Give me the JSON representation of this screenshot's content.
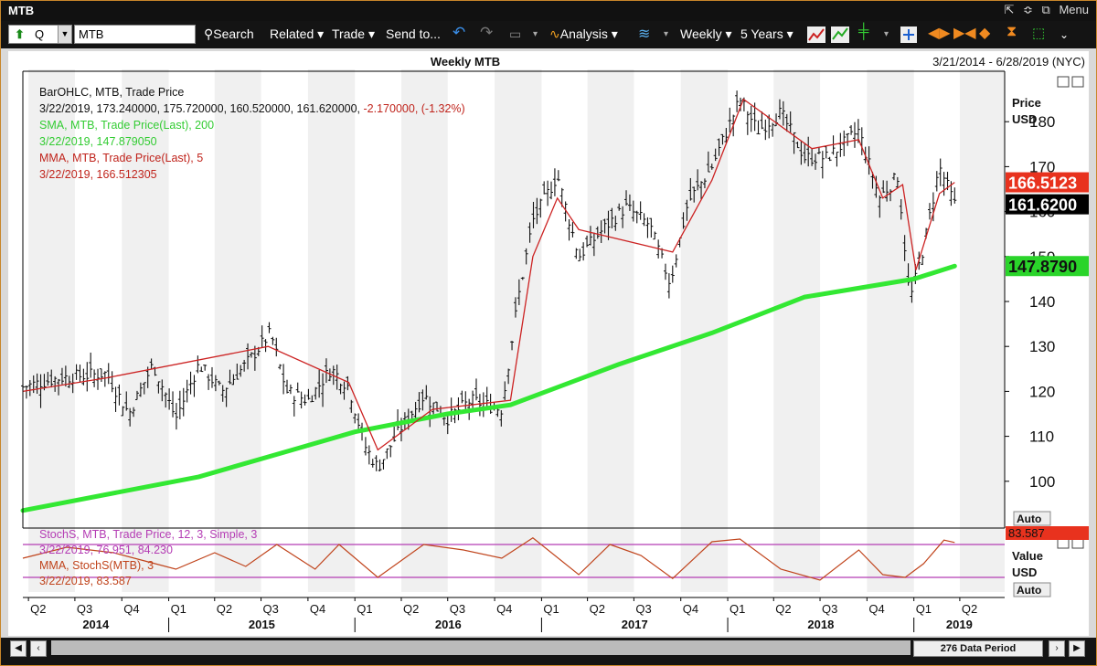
{
  "window": {
    "title": "MTB",
    "menu_label": "Menu",
    "pin_glyph": "⇱",
    "chevron_glyph": "≎",
    "window_glyph": "⧉"
  },
  "toolbar": {
    "symbol_q": "Q",
    "ticker": "MTB",
    "search": "Search",
    "related": "Related ▾",
    "trade": "Trade ▾",
    "send_to": "Send to...",
    "analysis": "Analysis ▾",
    "period": "Weekly ▾",
    "range": "5 Years ▾"
  },
  "header": {
    "title": "Weekly MTB",
    "range": "3/21/2014 - 6/28/2019 (NYC)"
  },
  "legend": {
    "bar_name": "BarOHLC, MTB, Trade Price",
    "bar_values": "3/22/2019, 173.240000, 175.720000, 160.520000, 161.620000,",
    "bar_change": "-2.170000, (-1.32%)",
    "sma_name": "SMA, MTB, Trade Price(Last),  200",
    "sma_value": "3/22/2019, 147.879050",
    "mma_name": "MMA, MTB, Trade Price(Last),  5",
    "mma_value": "3/22/2019, 166.512305",
    "stoch_name": "StochS, MTB, Trade Price,  12, 3, Simple, 3",
    "stoch_value": "3/22/2019, 76.951, 84.230",
    "stoch_mma_name": "MMA, StochS(MTB),  3",
    "stoch_mma_value": "3/22/2019, 83.587"
  },
  "axis": {
    "price_label": "Price",
    "price_unit": "USD",
    "value_label": "Value",
    "value_unit": "USD",
    "auto_label": "Auto",
    "auto_label_2": "Auto",
    "quarter_labels": [
      "Q2",
      "Q3",
      "Q4",
      "Q1",
      "Q2",
      "Q3",
      "Q4",
      "Q1",
      "Q2",
      "Q3",
      "Q4",
      "Q1",
      "Q2",
      "Q3",
      "Q4",
      "Q1",
      "Q2",
      "Q3",
      "Q4",
      "Q1",
      "Q2"
    ],
    "year_labels": [
      "2014",
      "2015",
      "2016",
      "2017",
      "2018",
      "2019"
    ]
  },
  "badges": {
    "mma": "166.5123",
    "last": "161.6200",
    "sma": "147.8790",
    "stoch": "83.587"
  },
  "status": {
    "data_period": "276 Data Period"
  },
  "colors": {
    "sma": "#33e833",
    "mma": "#cc2222",
    "bars": "#111111",
    "stoch_line": "#c0441c",
    "stoch_band": "#b43cb4",
    "badge_red": "#e8321e",
    "badge_green": "#2ad42a"
  },
  "chart_data": [
    {
      "type": "bar",
      "subtype": "ohlc",
      "title": "Weekly MTB",
      "ylabel": "Price USD",
      "ylim": [
        90,
        190
      ],
      "yticks": [
        100,
        110,
        120,
        130,
        140,
        150,
        160,
        170,
        180
      ],
      "x_range": [
        "2014-03-21",
        "2019-06-28"
      ],
      "series": [
        {
          "name": "BarOHLC, MTB, Trade Price",
          "points": [
            {
              "date": "2014-03-21",
              "close": 121
            },
            {
              "date": "2014-06-01",
              "close": 123
            },
            {
              "date": "2014-09-01",
              "close": 124
            },
            {
              "date": "2014-10-15",
              "close": 115
            },
            {
              "date": "2014-12-01",
              "close": 126
            },
            {
              "date": "2015-01-15",
              "close": 114
            },
            {
              "date": "2015-03-01",
              "close": 126
            },
            {
              "date": "2015-04-15",
              "close": 120
            },
            {
              "date": "2015-06-01",
              "close": 126
            },
            {
              "date": "2015-07-20",
              "close": 133
            },
            {
              "date": "2015-08-20",
              "close": 120
            },
            {
              "date": "2015-10-01",
              "close": 118
            },
            {
              "date": "2015-11-15",
              "close": 125
            },
            {
              "date": "2015-12-20",
              "close": 121
            },
            {
              "date": "2016-01-20",
              "close": 108
            },
            {
              "date": "2016-02-15",
              "close": 103
            },
            {
              "date": "2016-04-01",
              "close": 112
            },
            {
              "date": "2016-05-15",
              "close": 119
            },
            {
              "date": "2016-07-01",
              "close": 114
            },
            {
              "date": "2016-08-15",
              "close": 118
            },
            {
              "date": "2016-10-15",
              "close": 116
            },
            {
              "date": "2016-11-15",
              "close": 140
            },
            {
              "date": "2016-12-15",
              "close": 158
            },
            {
              "date": "2017-02-01",
              "close": 168
            },
            {
              "date": "2017-03-15",
              "close": 150
            },
            {
              "date": "2017-05-01",
              "close": 156
            },
            {
              "date": "2017-06-15",
              "close": 161
            },
            {
              "date": "2017-08-01",
              "close": 157
            },
            {
              "date": "2017-09-10",
              "close": 144
            },
            {
              "date": "2017-10-15",
              "close": 162
            },
            {
              "date": "2017-12-01",
              "close": 170
            },
            {
              "date": "2018-01-25",
              "close": 185
            },
            {
              "date": "2018-03-01",
              "close": 178
            },
            {
              "date": "2018-04-15",
              "close": 182
            },
            {
              "date": "2018-06-01",
              "close": 172
            },
            {
              "date": "2018-07-15",
              "close": 172
            },
            {
              "date": "2018-09-15",
              "close": 178
            },
            {
              "date": "2018-10-25",
              "close": 163
            },
            {
              "date": "2018-12-01",
              "close": 168
            },
            {
              "date": "2018-12-24",
              "close": 140
            },
            {
              "date": "2019-01-20",
              "close": 152
            },
            {
              "date": "2019-02-20",
              "close": 170
            },
            {
              "date": "2019-03-22",
              "close": 161.62
            }
          ]
        },
        {
          "name": "SMA, MTB, Trade Price(Last),  200",
          "points": [
            {
              "date": "2014-03-21",
              "value": 93.5
            },
            {
              "date": "2015-03-01",
              "value": 101
            },
            {
              "date": "2015-09-01",
              "value": 107
            },
            {
              "date": "2016-01-01",
              "value": 111
            },
            {
              "date": "2016-07-01",
              "value": 115
            },
            {
              "date": "2016-11-01",
              "value": 117
            },
            {
              "date": "2017-06-01",
              "value": 126
            },
            {
              "date": "2017-12-01",
              "value": 133
            },
            {
              "date": "2018-06-01",
              "value": 141
            },
            {
              "date": "2019-01-01",
              "value": 145
            },
            {
              "date": "2019-03-22",
              "value": 147.879
            }
          ]
        },
        {
          "name": "MMA, MTB, Trade Price(Last),  5",
          "points": [
            {
              "date": "2014-03-21",
              "value": 120
            },
            {
              "date": "2014-09-01",
              "value": 123
            },
            {
              "date": "2015-07-15",
              "value": 130
            },
            {
              "date": "2015-12-20",
              "value": 122
            },
            {
              "date": "2016-02-15",
              "value": 107
            },
            {
              "date": "2016-06-01",
              "value": 116
            },
            {
              "date": "2016-11-01",
              "value": 118
            },
            {
              "date": "2016-12-15",
              "value": 150
            },
            {
              "date": "2017-02-01",
              "value": 163
            },
            {
              "date": "2017-03-15",
              "value": 156
            },
            {
              "date": "2017-09-15",
              "value": 151
            },
            {
              "date": "2017-12-01",
              "value": 167
            },
            {
              "date": "2018-02-01",
              "value": 185
            },
            {
              "date": "2018-06-15",
              "value": 174
            },
            {
              "date": "2018-09-15",
              "value": 176
            },
            {
              "date": "2018-11-01",
              "value": 163
            },
            {
              "date": "2018-12-10",
              "value": 166
            },
            {
              "date": "2019-01-05",
              "value": 147
            },
            {
              "date": "2019-02-20",
              "value": 164
            },
            {
              "date": "2019-03-22",
              "value": 166.512
            }
          ]
        }
      ]
    },
    {
      "type": "line",
      "title": "StochS, MTB, Trade Price,  12, 3, Simple, 3",
      "ylabel": "Value USD",
      "ylim": [
        0,
        100
      ],
      "bands": [
        80,
        20
      ],
      "series": [
        {
          "name": "MMA, StochS(MTB),  3",
          "points": [
            {
              "date": "2014-03-21",
              "value": 55
            },
            {
              "date": "2014-06-15",
              "value": 75
            },
            {
              "date": "2014-09-15",
              "value": 65
            },
            {
              "date": "2014-11-15",
              "value": 50
            },
            {
              "date": "2015-01-15",
              "value": 35
            },
            {
              "date": "2015-04-01",
              "value": 65
            },
            {
              "date": "2015-06-01",
              "value": 40
            },
            {
              "date": "2015-08-01",
              "value": 80
            },
            {
              "date": "2015-10-15",
              "value": 35
            },
            {
              "date": "2015-12-01",
              "value": 80
            },
            {
              "date": "2016-02-15",
              "value": 20
            },
            {
              "date": "2016-05-15",
              "value": 80
            },
            {
              "date": "2016-08-01",
              "value": 70
            },
            {
              "date": "2016-10-15",
              "value": 55
            },
            {
              "date": "2016-12-15",
              "value": 92
            },
            {
              "date": "2017-03-15",
              "value": 25
            },
            {
              "date": "2017-05-15",
              "value": 80
            },
            {
              "date": "2017-07-15",
              "value": 60
            },
            {
              "date": "2017-09-15",
              "value": 18
            },
            {
              "date": "2017-12-01",
              "value": 85
            },
            {
              "date": "2018-01-25",
              "value": 90
            },
            {
              "date": "2018-04-15",
              "value": 35
            },
            {
              "date": "2018-07-01",
              "value": 15
            },
            {
              "date": "2018-09-15",
              "value": 70
            },
            {
              "date": "2018-11-01",
              "value": 25
            },
            {
              "date": "2018-12-15",
              "value": 20
            },
            {
              "date": "2019-01-20",
              "value": 45
            },
            {
              "date": "2019-03-01",
              "value": 88
            },
            {
              "date": "2019-03-22",
              "value": 83.587
            }
          ]
        }
      ]
    }
  ]
}
